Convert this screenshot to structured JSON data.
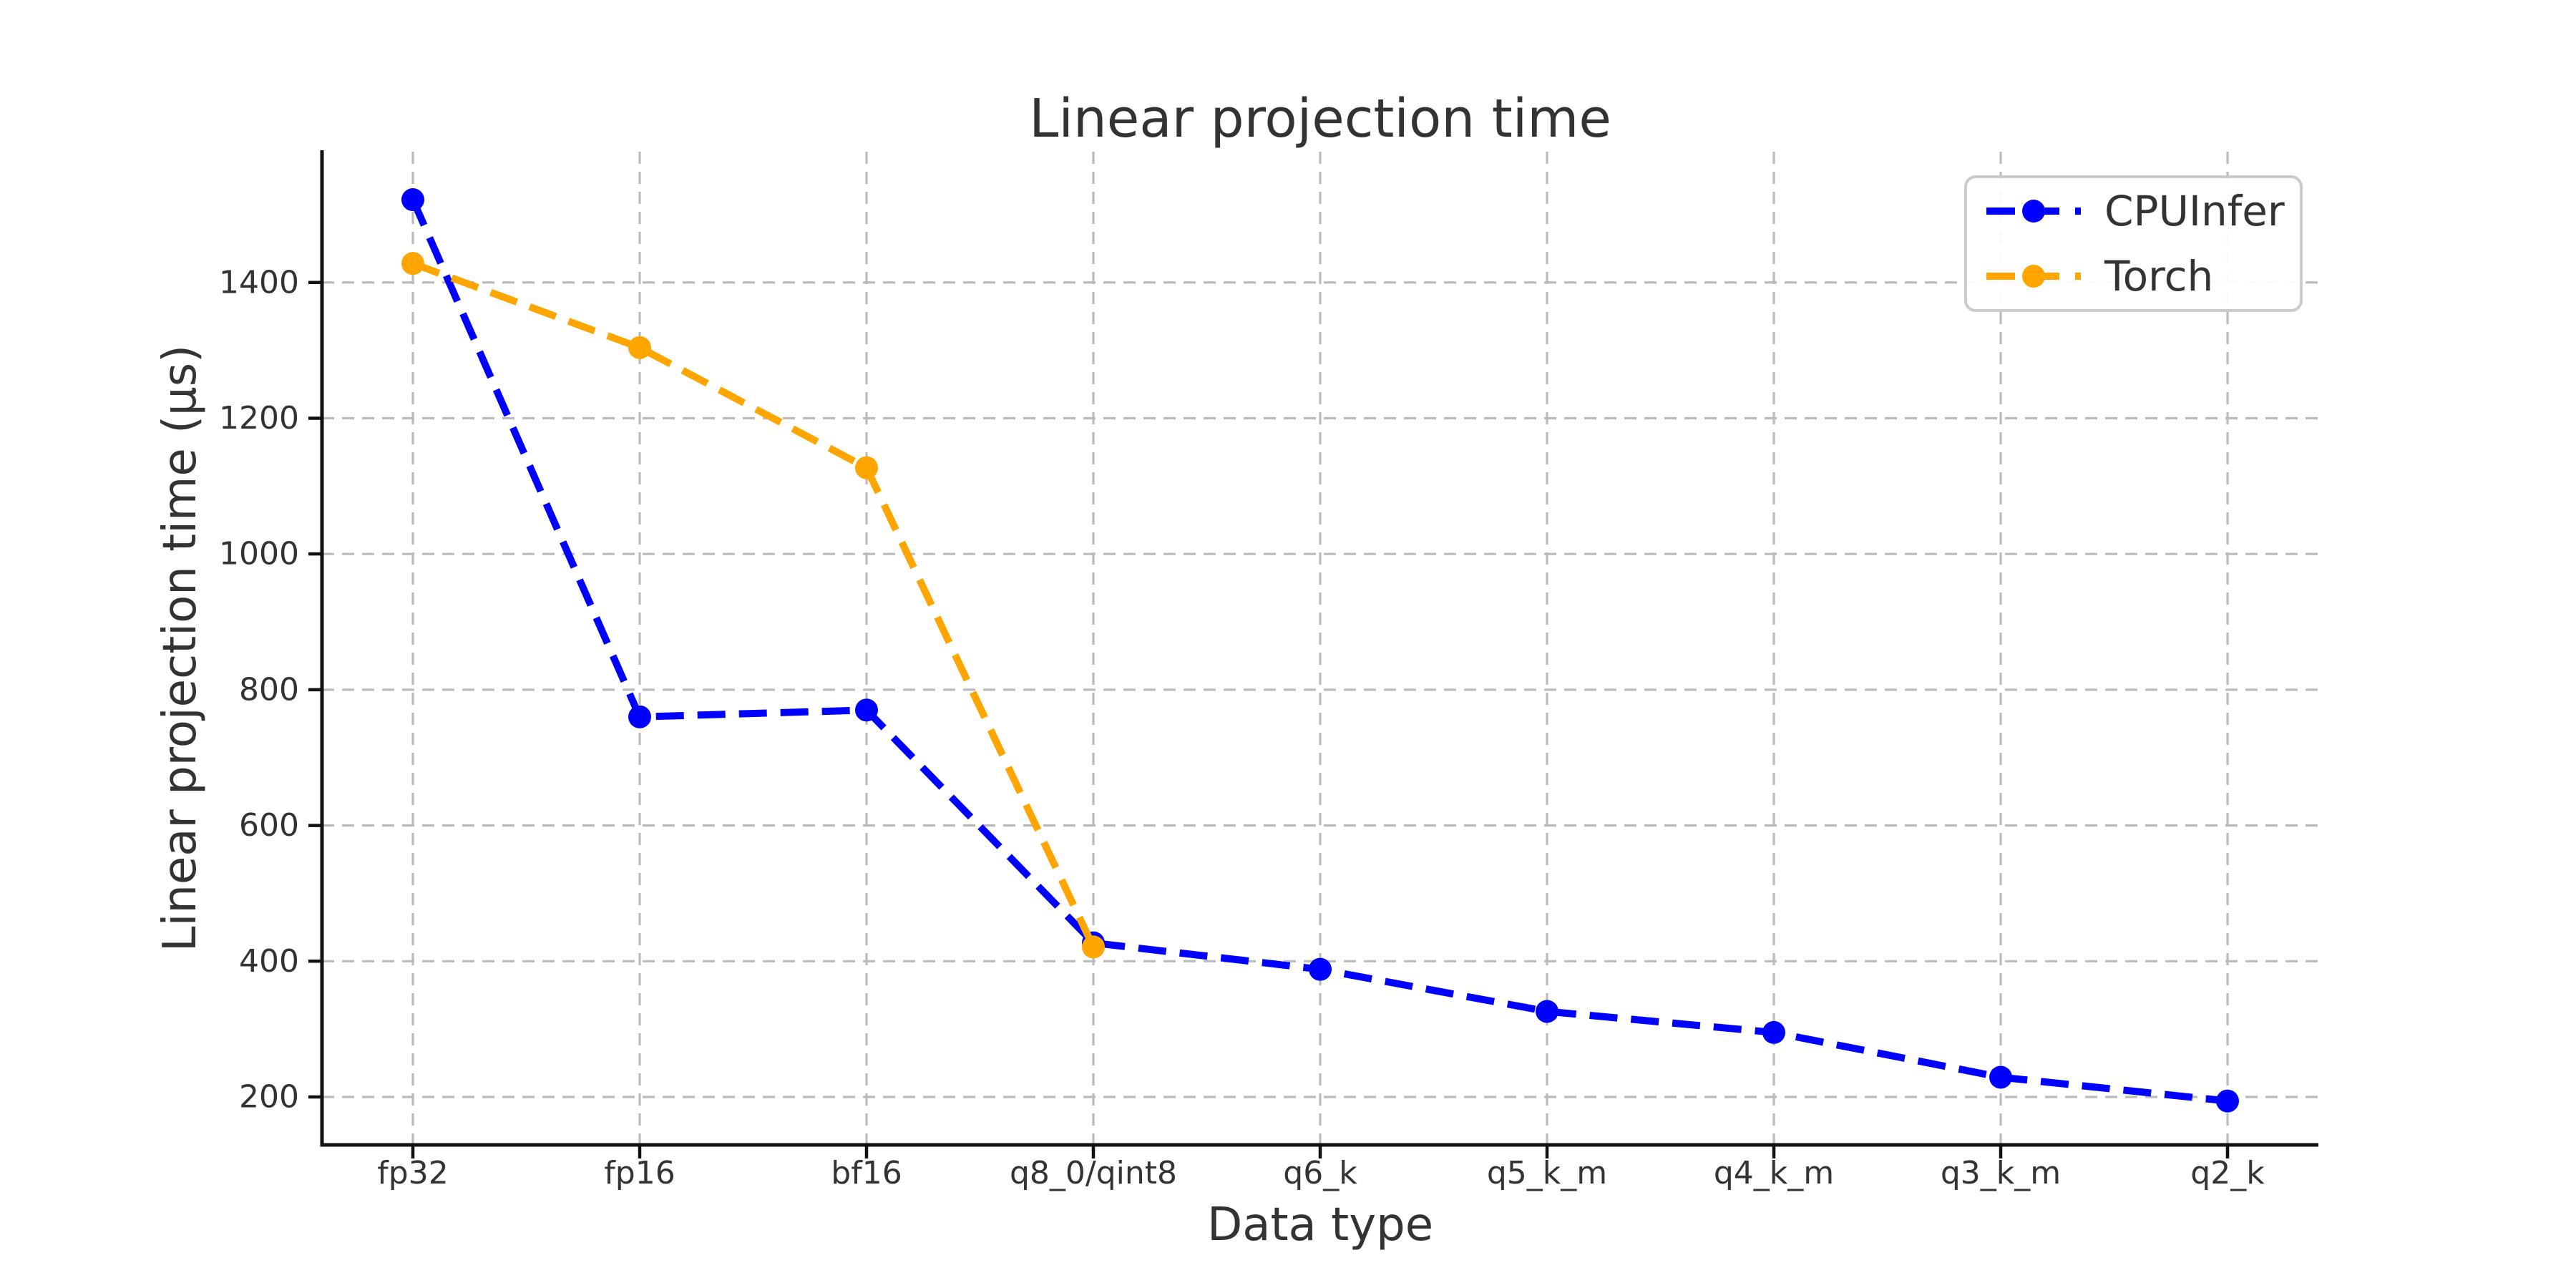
{
  "figure": {
    "title": "Linear projection time",
    "xlabel": "Data type",
    "ylabel": "Linear projection time (µs)"
  },
  "legend": {
    "items": [
      {
        "label": "CPUInfer",
        "color": "#0000ff"
      },
      {
        "label": "Torch",
        "color": "#ffa500"
      }
    ]
  },
  "colors": {
    "background": "#ffffff",
    "text": "#333333",
    "spine": "#111111",
    "grid": "#bbbbbb",
    "cpuinfer_blue": "#0000ff",
    "torch_orange": "#ffa500",
    "legend_border": "#cbcbcb"
  },
  "chart_data": {
    "type": "line",
    "title": "Linear projection time",
    "xlabel": "Data type",
    "ylabel": "Linear projection time (µs)",
    "categories": [
      "fp32",
      "fp16",
      "bf16",
      "q8_0/qint8",
      "q6_k",
      "q5_k_m",
      "q4_k_m",
      "q3_k_m",
      "q2_k"
    ],
    "series": [
      {
        "name": "CPUInfer",
        "color": "#0000ff",
        "values": [
          1522,
          760,
          770,
          427,
          388,
          326,
          295,
          229,
          194
        ]
      },
      {
        "name": "Torch",
        "color": "#ffa500",
        "values": [
          1428,
          1304,
          1127,
          421
        ]
      }
    ],
    "y_ticks": [
      200,
      400,
      600,
      800,
      1000,
      1200,
      1400
    ],
    "ylim": [
      129,
      1593
    ],
    "grid": true,
    "grid_style": "dashed",
    "line_style": "dashed",
    "marker": "circle",
    "legend_position": "upper right"
  }
}
